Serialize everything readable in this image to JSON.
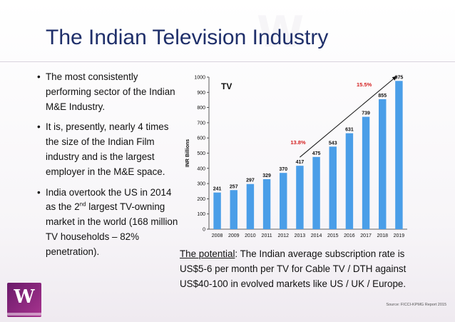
{
  "slide": {
    "title": "The Indian Television Industry",
    "bullets": [
      {
        "text": "The most consistently performing sector of the Indian M&E Industry."
      },
      {
        "text": "It is, presently, nearly 4 times the size of the Indian Film industry and is the largest employer in the M&E space."
      },
      {
        "pre": "India overtook the US in 2014 as the 2",
        "sup": "nd",
        "post": " largest TV-owning market in the world (168 million TV households – 82% penetration)."
      }
    ],
    "bullet_glyph": "•",
    "potential": {
      "label": "The potential",
      "text": ": The Indian average subscription rate is US$5-6 per month per TV for Cable TV / DTH against US$40-100 in evolved markets like US / UK / Europe."
    },
    "source": "Source: FICCI-KPMG Report 2015",
    "logo_letter": "W"
  },
  "colors": {
    "title": "#1f2f6a",
    "bar": "#4a9ee8",
    "growth_label": "#d42020",
    "axis": "#333333"
  },
  "chart_data": {
    "type": "bar",
    "title": "TV",
    "ylabel": "INR Billions",
    "xlabel": "",
    "categories": [
      "2008",
      "2009",
      "2010",
      "2011",
      "2012",
      "2013",
      "2014",
      "2015",
      "2016",
      "2017",
      "2018",
      "2019"
    ],
    "values": [
      241,
      257,
      297,
      329,
      370,
      417,
      475,
      543,
      631,
      739,
      855,
      975
    ],
    "ylim": [
      0,
      1000
    ],
    "yticks": [
      0,
      100,
      200,
      300,
      400,
      500,
      600,
      700,
      800,
      900,
      1000
    ],
    "grid": false,
    "legend": "none",
    "annotations": [
      {
        "text": "13.8%",
        "type": "growth-rate",
        "color": "#d42020",
        "period": [
          "2013",
          "2014"
        ]
      },
      {
        "text": "15.5%",
        "type": "growth-rate",
        "color": "#d42020",
        "period": [
          "2017",
          "2018"
        ]
      }
    ],
    "trend_arrow": {
      "from_category": "2013",
      "to_category": "2019"
    }
  }
}
